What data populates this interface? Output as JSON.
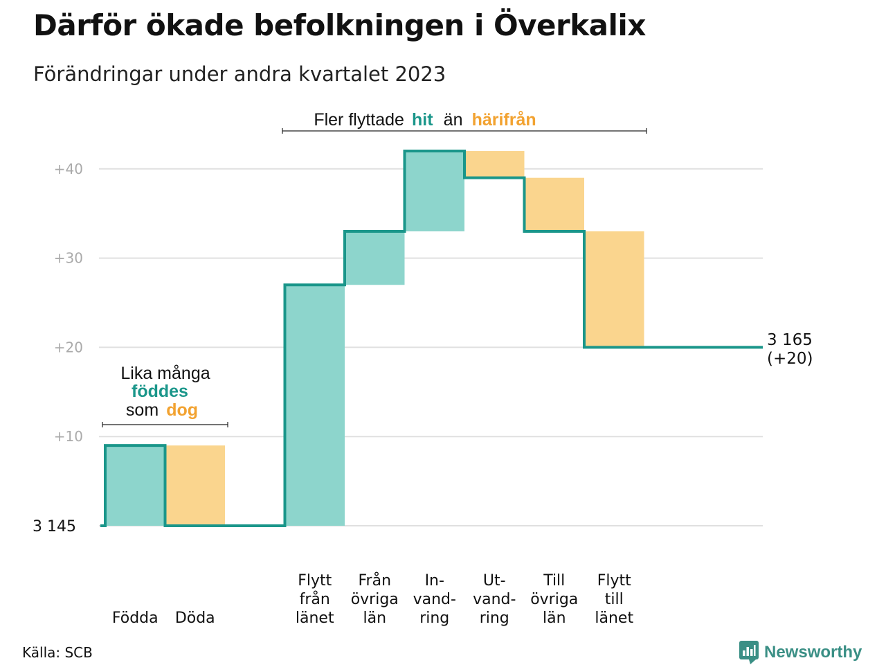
{
  "title": "Därför ökade befolkningen i Överkalix",
  "subtitle": "Förändringar under andra kvartalet 2023",
  "source": "Källa: SCB",
  "brand": {
    "name": "Newsworthy",
    "logo_icon": "bar-chart-speech-bubble-icon"
  },
  "colors": {
    "increase": "#8dd5cc",
    "decrease": "#fad58e",
    "line": "#1a968a",
    "hit": "#1a968a",
    "harifran": "#f2a230",
    "grid": "#e0e0e0",
    "tick": "#aaaaaa"
  },
  "chart_data": {
    "type": "waterfall",
    "base_value": 3145,
    "base_label": "3  145",
    "y_ticks": [
      {
        "value": 10,
        "label": "+10"
      },
      {
        "value": 20,
        "label": "+20"
      },
      {
        "value": 30,
        "label": "+30"
      },
      {
        "value": 40,
        "label": "+40"
      }
    ],
    "ylim": [
      0,
      42
    ],
    "grid": true,
    "steps": [
      {
        "label": [
          "Födda"
        ],
        "change": 9
      },
      {
        "label": [
          "Döda"
        ],
        "change": -9
      },
      {
        "label": [],
        "change": 0
      },
      {
        "label": [
          "Flytt",
          "från",
          "länet"
        ],
        "change": 27
      },
      {
        "label": [
          "Från",
          "övriga",
          "län"
        ],
        "change": 6
      },
      {
        "label": [
          "In-",
          "vand-",
          "ring"
        ],
        "change": 9
      },
      {
        "label": [
          "Ut-",
          "vand-",
          "ring"
        ],
        "change": -3
      },
      {
        "label": [
          "Till",
          "övriga",
          "län"
        ],
        "change": -6
      },
      {
        "label": [
          "Flytt",
          "till",
          "länet"
        ],
        "change": -13
      }
    ],
    "end_value": 20,
    "end_label": [
      "3 165",
      "(+20)"
    ]
  },
  "annotations": {
    "migration": {
      "pre": "Fler flyttade",
      "hit": "hit",
      "mid": "än",
      "harifran": "härifrån"
    },
    "natural": {
      "line1": "Lika många",
      "line2": "föddes",
      "line3_pre": "som",
      "line3_post": "dog"
    }
  }
}
